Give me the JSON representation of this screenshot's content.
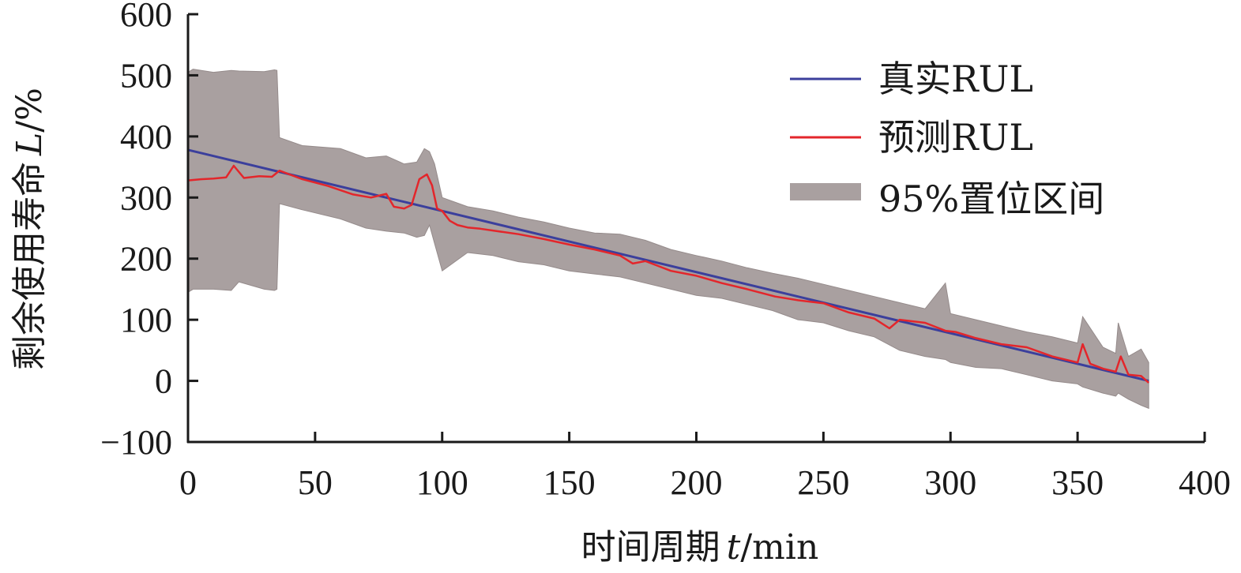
{
  "chart_data": {
    "type": "line",
    "xlabel_prefix": "时间周期",
    "xlabel_var": "t",
    "xlabel_unit": "/min",
    "ylabel_prefix": "剩余使用寿命",
    "ylabel_var": "L",
    "ylabel_unit": "/%",
    "xlim": [
      0,
      400
    ],
    "ylim": [
      -100,
      600
    ],
    "xticks": [
      0,
      50,
      100,
      150,
      200,
      250,
      300,
      350,
      400
    ],
    "yticks": [
      -100,
      0,
      100,
      200,
      300,
      400,
      500,
      600
    ],
    "xtick_labels": [
      "0",
      "50",
      "100",
      "150",
      "200",
      "250",
      "300",
      "350",
      "400"
    ],
    "ytick_labels": [
      "−100",
      "0",
      "100",
      "200",
      "300",
      "400",
      "500",
      "600"
    ],
    "grid": false,
    "legend_position": "top-right",
    "legend": {
      "true_rul": "真实RUL",
      "pred_rul": "预测RUL",
      "ci": "95%置位区间"
    },
    "colors": {
      "true_rul": "#3b3f9c",
      "pred_rul": "#e3262b",
      "ci_fill": "#a9a0a0",
      "ci_edge": "#958b8b"
    },
    "series": [
      {
        "name": "真实RUL",
        "x": [
          0,
          378
        ],
        "values": [
          378,
          0
        ]
      },
      {
        "name": "预测RUL",
        "x": [
          0,
          5,
          10,
          15,
          18,
          22,
          28,
          33,
          36,
          45,
          55,
          65,
          72,
          78,
          81,
          85,
          88,
          91,
          94,
          96,
          98,
          100,
          103,
          106,
          110,
          115,
          120,
          130,
          140,
          150,
          160,
          170,
          175,
          180,
          185,
          190,
          200,
          210,
          220,
          231,
          240,
          250,
          260,
          270,
          276,
          280,
          290,
          298,
          302,
          310,
          320,
          330,
          340,
          350,
          352,
          355,
          360,
          365,
          367,
          370,
          375,
          378
        ],
        "values": [
          328,
          330,
          331,
          333,
          352,
          332,
          335,
          334,
          344,
          330,
          319,
          305,
          300,
          306,
          285,
          282,
          288,
          330,
          338,
          320,
          282,
          278,
          262,
          255,
          251,
          249,
          246,
          240,
          232,
          223,
          215,
          205,
          192,
          196,
          188,
          180,
          172,
          160,
          150,
          138,
          132,
          127,
          112,
          102,
          86,
          100,
          95,
          82,
          80,
          70,
          60,
          55,
          40,
          30,
          60,
          28,
          20,
          15,
          40,
          10,
          8,
          -3
        ]
      }
    ],
    "ci_band": {
      "name": "95%置位区间",
      "x": [
        0,
        2,
        10,
        17,
        20,
        30,
        34,
        35,
        36,
        45,
        60,
        70,
        78,
        85,
        90,
        93,
        95,
        97,
        100,
        110,
        120,
        130,
        140,
        150,
        160,
        170,
        180,
        190,
        200,
        210,
        220,
        230,
        240,
        250,
        260,
        270,
        280,
        290,
        298,
        300,
        310,
        320,
        330,
        340,
        350,
        352,
        360,
        365,
        366,
        370,
        375,
        378
      ],
      "upper": [
        505,
        510,
        505,
        508,
        507,
        506,
        509,
        508,
        398,
        385,
        380,
        365,
        368,
        355,
        358,
        380,
        375,
        355,
        300,
        285,
        278,
        268,
        260,
        250,
        242,
        240,
        230,
        215,
        205,
        196,
        185,
        176,
        168,
        158,
        148,
        138,
        128,
        118,
        160,
        110,
        100,
        90,
        80,
        72,
        62,
        105,
        55,
        45,
        95,
        40,
        52,
        30
      ],
      "lower": [
        145,
        150,
        150,
        148,
        162,
        150,
        148,
        150,
        290,
        280,
        265,
        250,
        245,
        242,
        235,
        238,
        255,
        225,
        180,
        210,
        205,
        195,
        190,
        180,
        175,
        170,
        160,
        150,
        140,
        135,
        125,
        115,
        100,
        95,
        82,
        72,
        50,
        40,
        35,
        30,
        22,
        20,
        10,
        0,
        -5,
        -10,
        -20,
        -25,
        -20,
        -30,
        -40,
        -45
      ]
    }
  }
}
